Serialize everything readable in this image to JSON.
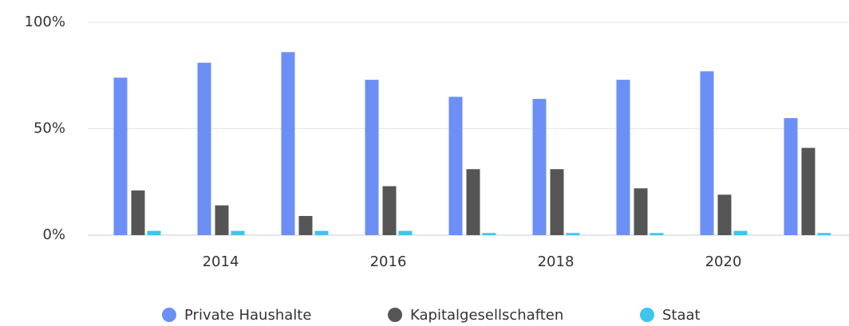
{
  "chart_data": {
    "type": "bar",
    "categories": [
      null,
      "2014",
      null,
      "2016",
      null,
      "2018",
      null,
      "2020",
      null
    ],
    "series": [
      {
        "name": "Private Haushalte",
        "color": "#6b8ff5",
        "values": [
          74,
          81,
          86,
          73,
          65,
          64,
          73,
          77,
          55
        ]
      },
      {
        "name": "Kapitalgesellschaften",
        "color": "#555555",
        "values": [
          21,
          14,
          9,
          23,
          31,
          31,
          22,
          19,
          41
        ]
      },
      {
        "name": "Staat",
        "color": "#3fc4ee",
        "values": [
          2,
          2,
          2,
          2,
          1,
          1,
          1,
          2,
          1
        ]
      }
    ],
    "ylim": [
      0,
      100
    ],
    "yticks": [
      {
        "value": 0,
        "label": "0%"
      },
      {
        "value": 50,
        "label": "50%"
      },
      {
        "value": 100,
        "label": "100%"
      }
    ],
    "grid": true,
    "legend": "bottom"
  }
}
